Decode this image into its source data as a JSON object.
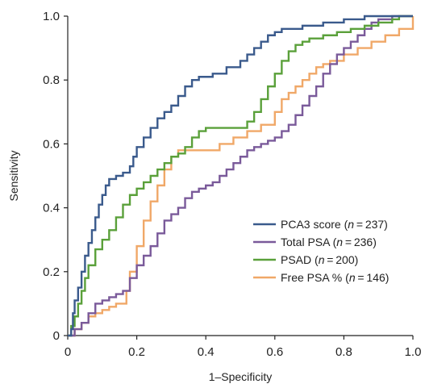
{
  "chart_data": {
    "type": "line",
    "xlabel": "1–Specificity",
    "ylabel": "Sensitivity",
    "xlim": [
      0,
      1
    ],
    "ylim": [
      0,
      1
    ],
    "x_ticks": [
      "0",
      "0.2",
      "0.4",
      "0.6",
      "0.8",
      "1.0"
    ],
    "y_ticks": [
      "0",
      "0.2",
      "0.4",
      "0.6",
      "0.8",
      "1.0"
    ],
    "grid": false,
    "legend_position": "bottom-right",
    "series": [
      {
        "name": "PCA3 score (n = 237)",
        "label_main": "PCA3 score (",
        "label_n": "n",
        "label_rest": " = 237)",
        "color": "#3a5a8c",
        "points": [
          [
            0,
            0
          ],
          [
            0.01,
            0.02
          ],
          [
            0.015,
            0.07
          ],
          [
            0.02,
            0.11
          ],
          [
            0.03,
            0.15
          ],
          [
            0.04,
            0.2
          ],
          [
            0.05,
            0.25
          ],
          [
            0.06,
            0.29
          ],
          [
            0.07,
            0.33
          ],
          [
            0.08,
            0.37
          ],
          [
            0.09,
            0.41
          ],
          [
            0.1,
            0.44
          ],
          [
            0.11,
            0.47
          ],
          [
            0.12,
            0.49
          ],
          [
            0.14,
            0.5
          ],
          [
            0.16,
            0.51
          ],
          [
            0.18,
            0.53
          ],
          [
            0.19,
            0.56
          ],
          [
            0.2,
            0.59
          ],
          [
            0.22,
            0.62
          ],
          [
            0.24,
            0.65
          ],
          [
            0.26,
            0.68
          ],
          [
            0.28,
            0.7
          ],
          [
            0.3,
            0.72
          ],
          [
            0.32,
            0.75
          ],
          [
            0.34,
            0.78
          ],
          [
            0.36,
            0.8
          ],
          [
            0.38,
            0.81
          ],
          [
            0.42,
            0.82
          ],
          [
            0.46,
            0.84
          ],
          [
            0.5,
            0.86
          ],
          [
            0.52,
            0.88
          ],
          [
            0.54,
            0.9
          ],
          [
            0.56,
            0.92
          ],
          [
            0.58,
            0.94
          ],
          [
            0.6,
            0.95
          ],
          [
            0.62,
            0.96
          ],
          [
            0.68,
            0.97
          ],
          [
            0.74,
            0.98
          ],
          [
            0.8,
            0.99
          ],
          [
            0.86,
            1.0
          ],
          [
            1.0,
            1.0
          ]
        ]
      },
      {
        "name": "Total PSA (n = 236)",
        "label_main": "Total PSA (",
        "label_n": "n",
        "label_rest": " = 236)",
        "color": "#7a5a9a",
        "points": [
          [
            0,
            0
          ],
          [
            0.02,
            0.02
          ],
          [
            0.04,
            0.04
          ],
          [
            0.06,
            0.07
          ],
          [
            0.08,
            0.1
          ],
          [
            0.1,
            0.11
          ],
          [
            0.12,
            0.12
          ],
          [
            0.14,
            0.13
          ],
          [
            0.16,
            0.14
          ],
          [
            0.18,
            0.18
          ],
          [
            0.2,
            0.22
          ],
          [
            0.22,
            0.25
          ],
          [
            0.24,
            0.28
          ],
          [
            0.26,
            0.32
          ],
          [
            0.28,
            0.36
          ],
          [
            0.3,
            0.38
          ],
          [
            0.32,
            0.4
          ],
          [
            0.34,
            0.43
          ],
          [
            0.36,
            0.45
          ],
          [
            0.38,
            0.46
          ],
          [
            0.4,
            0.47
          ],
          [
            0.42,
            0.48
          ],
          [
            0.44,
            0.5
          ],
          [
            0.46,
            0.52
          ],
          [
            0.48,
            0.54
          ],
          [
            0.5,
            0.56
          ],
          [
            0.52,
            0.58
          ],
          [
            0.54,
            0.59
          ],
          [
            0.56,
            0.6
          ],
          [
            0.58,
            0.61
          ],
          [
            0.6,
            0.62
          ],
          [
            0.62,
            0.64
          ],
          [
            0.64,
            0.66
          ],
          [
            0.66,
            0.69
          ],
          [
            0.68,
            0.72
          ],
          [
            0.7,
            0.75
          ],
          [
            0.72,
            0.78
          ],
          [
            0.74,
            0.82
          ],
          [
            0.76,
            0.85
          ],
          [
            0.78,
            0.88
          ],
          [
            0.8,
            0.9
          ],
          [
            0.82,
            0.92
          ],
          [
            0.84,
            0.94
          ],
          [
            0.86,
            0.96
          ],
          [
            0.88,
            0.98
          ],
          [
            0.9,
            0.99
          ],
          [
            0.94,
            1.0
          ],
          [
            1.0,
            1.0
          ]
        ]
      },
      {
        "name": "PSAD (n = 200)",
        "label_main": "PSAD (",
        "label_n": "n",
        "label_rest": " = 200)",
        "color": "#5aa03a",
        "points": [
          [
            0,
            0
          ],
          [
            0.01,
            0.03
          ],
          [
            0.02,
            0.06
          ],
          [
            0.03,
            0.1
          ],
          [
            0.04,
            0.14
          ],
          [
            0.05,
            0.18
          ],
          [
            0.06,
            0.22
          ],
          [
            0.08,
            0.27
          ],
          [
            0.1,
            0.3
          ],
          [
            0.12,
            0.33
          ],
          [
            0.14,
            0.37
          ],
          [
            0.16,
            0.41
          ],
          [
            0.18,
            0.44
          ],
          [
            0.2,
            0.46
          ],
          [
            0.22,
            0.48
          ],
          [
            0.24,
            0.5
          ],
          [
            0.26,
            0.52
          ],
          [
            0.28,
            0.54
          ],
          [
            0.3,
            0.56
          ],
          [
            0.32,
            0.57
          ],
          [
            0.34,
            0.59
          ],
          [
            0.36,
            0.62
          ],
          [
            0.38,
            0.64
          ],
          [
            0.4,
            0.65
          ],
          [
            0.5,
            0.65
          ],
          [
            0.52,
            0.67
          ],
          [
            0.54,
            0.7
          ],
          [
            0.56,
            0.74
          ],
          [
            0.58,
            0.78
          ],
          [
            0.6,
            0.82
          ],
          [
            0.62,
            0.86
          ],
          [
            0.64,
            0.89
          ],
          [
            0.66,
            0.91
          ],
          [
            0.68,
            0.92
          ],
          [
            0.7,
            0.93
          ],
          [
            0.74,
            0.94
          ],
          [
            0.78,
            0.95
          ],
          [
            0.82,
            0.96
          ],
          [
            0.86,
            0.97
          ],
          [
            0.9,
            0.98
          ],
          [
            0.94,
            0.99
          ],
          [
            0.96,
            1.0
          ],
          [
            1.0,
            1.0
          ]
        ]
      },
      {
        "name": "Free PSA % (n = 146)",
        "label_main": "Free PSA % (",
        "label_n": "n",
        "label_rest": " = 146)",
        "color": "#f0a868",
        "points": [
          [
            0,
            0
          ],
          [
            0.02,
            0.02
          ],
          [
            0.04,
            0.04
          ],
          [
            0.06,
            0.06
          ],
          [
            0.08,
            0.07
          ],
          [
            0.1,
            0.08
          ],
          [
            0.12,
            0.09
          ],
          [
            0.14,
            0.1
          ],
          [
            0.16,
            0.1
          ],
          [
            0.17,
            0.14
          ],
          [
            0.18,
            0.2
          ],
          [
            0.2,
            0.28
          ],
          [
            0.22,
            0.36
          ],
          [
            0.24,
            0.42
          ],
          [
            0.26,
            0.47
          ],
          [
            0.28,
            0.52
          ],
          [
            0.3,
            0.56
          ],
          [
            0.32,
            0.58
          ],
          [
            0.42,
            0.58
          ],
          [
            0.44,
            0.6
          ],
          [
            0.48,
            0.62
          ],
          [
            0.52,
            0.64
          ],
          [
            0.56,
            0.66
          ],
          [
            0.6,
            0.7
          ],
          [
            0.62,
            0.74
          ],
          [
            0.64,
            0.76
          ],
          [
            0.66,
            0.78
          ],
          [
            0.68,
            0.8
          ],
          [
            0.7,
            0.82
          ],
          [
            0.72,
            0.84
          ],
          [
            0.74,
            0.85
          ],
          [
            0.76,
            0.86
          ],
          [
            0.8,
            0.88
          ],
          [
            0.84,
            0.9
          ],
          [
            0.88,
            0.92
          ],
          [
            0.92,
            0.94
          ],
          [
            0.96,
            0.96
          ],
          [
            1.0,
            1.0
          ]
        ]
      }
    ]
  }
}
